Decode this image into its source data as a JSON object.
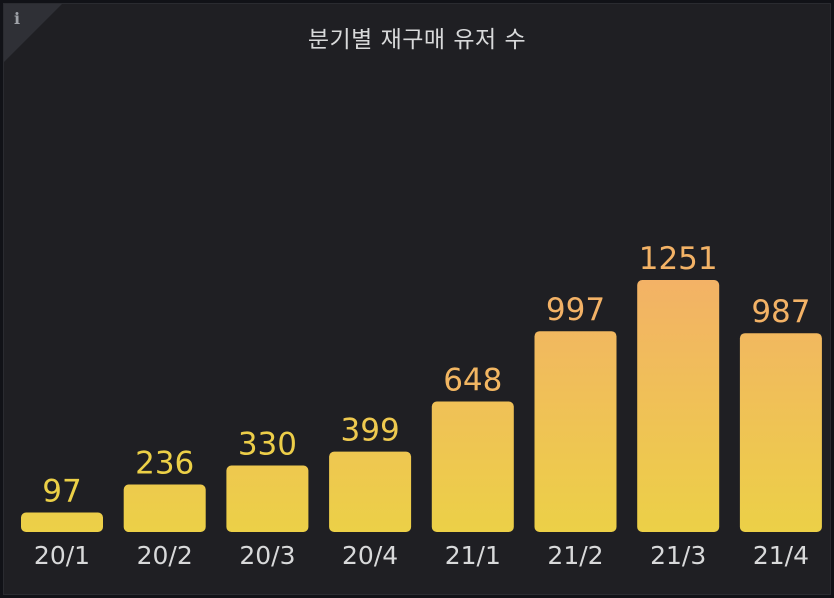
{
  "panel": {
    "title": "분기별 재구매 유저 수",
    "info_icon": "info-icon",
    "info_glyph": "i"
  },
  "colors": {
    "background": "#1f1f23",
    "bar_low": "#ecd047",
    "bar_high": "#f3b266",
    "label_low": "#ecd047",
    "label_high": "#f3b266",
    "axis_text": "#d8d9da"
  },
  "chart_data": {
    "type": "bar",
    "title": "분기별 재구매 유저 수",
    "categories": [
      "20/1",
      "20/2",
      "20/3",
      "20/4",
      "21/1",
      "21/2",
      "21/3",
      "21/4"
    ],
    "values": [
      97,
      236,
      330,
      399,
      648,
      997,
      1251,
      987
    ],
    "ylim": [
      0,
      1251
    ],
    "grid": false,
    "legend": "none",
    "value_labels": true
  }
}
